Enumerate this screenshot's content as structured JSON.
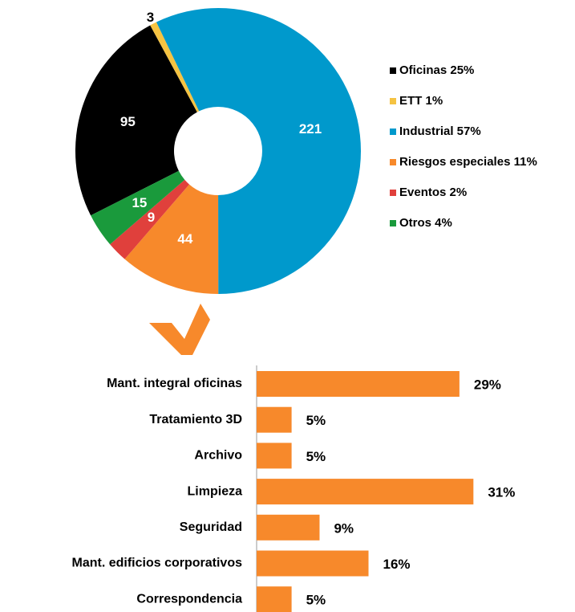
{
  "chart_data": [
    {
      "type": "donut",
      "categories": [
        "Oficinas  25%",
        "ETT 1%",
        "Industrial 57%",
        "Riesgos especiales 11%",
        "Eventos 2%",
        "Otros 4%"
      ],
      "values": [
        95,
        3,
        221,
        44,
        9,
        15
      ],
      "colors": [
        "#000000",
        "#f5c342",
        "#0099cc",
        "#f7892b",
        "#e0403c",
        "#1a9a3c"
      ],
      "legend": "right"
    },
    {
      "type": "hbar",
      "categories": [
        "Mant. integral oficinas",
        "Tratamiento 3D",
        "Archivo",
        "Limpieza",
        "Seguridad",
        "Mant. edificios corporativos",
        "Correspondencia"
      ],
      "values": [
        29,
        5,
        5,
        31,
        9,
        16,
        5
      ],
      "value_labels": [
        "29%",
        "5%",
        "5%",
        "31%",
        "9%",
        "16%",
        "5%"
      ],
      "color": "#f7892b"
    }
  ]
}
